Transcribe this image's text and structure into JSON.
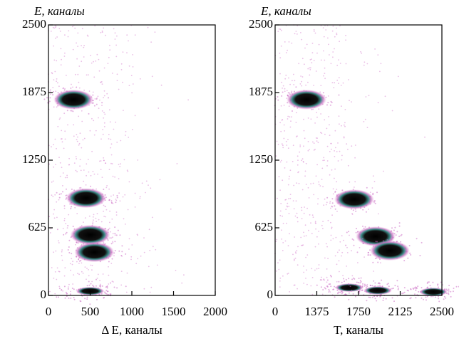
{
  "chart_data": [
    {
      "type": "scatter",
      "y_label": "E, каналы",
      "x_label": "Δ E, каналы",
      "xlim": [
        0,
        2000
      ],
      "xticks": [
        0,
        500,
        1000,
        1500,
        2000
      ],
      "ylim": [
        0,
        2500
      ],
      "yticks": [
        0,
        625,
        1250,
        1875,
        2500
      ],
      "x": [
        300,
        450,
        500,
        550,
        500
      ],
      "values": [
        1810,
        900,
        560,
        400,
        40
      ]
    },
    {
      "type": "scatter",
      "y_label": "E, каналы",
      "x_label": "T, каналы",
      "x_origin_label": "0",
      "xlim": [
        1000,
        2500
      ],
      "xticks": [
        1375,
        1750,
        2125,
        2500
      ],
      "ylim": [
        0,
        2500
      ],
      "yticks": [
        0,
        625,
        1250,
        1875,
        2500
      ],
      "x": [
        1282,
        1711,
        1904,
        2032,
        1667,
        1923,
        2423
      ],
      "values": [
        1810,
        888,
        546,
        414,
        72,
        46,
        33
      ]
    }
  ]
}
